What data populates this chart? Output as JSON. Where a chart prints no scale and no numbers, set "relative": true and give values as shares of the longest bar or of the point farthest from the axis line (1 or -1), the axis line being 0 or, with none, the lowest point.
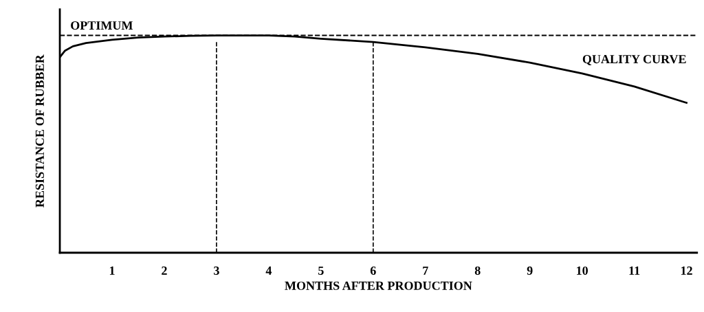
{
  "chart_data": {
    "type": "line",
    "relative": true,
    "xlabel": "MONTHS AFTER PRODUCTION",
    "ylabel": "RESISTANCE OF RUBBER",
    "x": [
      0,
      0.1,
      0.25,
      0.5,
      1,
      1.5,
      2,
      2.5,
      3,
      3.5,
      4,
      4.5,
      5,
      6,
      7,
      8,
      9,
      10,
      11,
      12
    ],
    "series": [
      {
        "name": "QUALITY CURVE",
        "color": "#000000",
        "values": [
          0.9,
          0.93,
          0.95,
          0.965,
          0.98,
          0.99,
          0.995,
          0.998,
          1.0,
          1.0,
          1.0,
          0.995,
          0.985,
          0.97,
          0.945,
          0.915,
          0.875,
          0.825,
          0.765,
          0.69
        ]
      }
    ],
    "xlim": [
      0,
      12.2
    ],
    "xticks": [
      1,
      2,
      3,
      4,
      5,
      6,
      7,
      8,
      9,
      10,
      11,
      12
    ],
    "ref_lines": [
      {
        "axis": "y",
        "value": 1.0,
        "label": "OPTIMUM",
        "line_style": "dashed",
        "color": "#000000"
      },
      {
        "axis": "x",
        "value": 3,
        "line_style": "dashed",
        "color": "#000000"
      },
      {
        "axis": "x",
        "value": 6,
        "line_style": "dashed",
        "color": "#000000"
      }
    ],
    "grid": false,
    "legend": false,
    "marker": "none",
    "line_style": "solid"
  }
}
